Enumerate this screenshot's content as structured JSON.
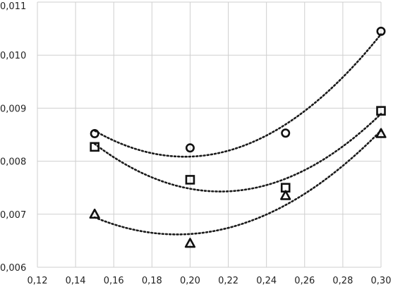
{
  "chart_data": {
    "type": "scatter",
    "title": "",
    "xlabel": "",
    "ylabel": "",
    "xlim": [
      0.12,
      0.3
    ],
    "ylim": [
      0.006,
      0.011
    ],
    "x_ticks": [
      "0,12",
      "0,14",
      "0,16",
      "0,18",
      "0,20",
      "0,22",
      "0,24",
      "0,26",
      "0,28",
      "0,30"
    ],
    "y_ticks": [
      "0,006",
      "0,007",
      "0,008",
      "0,009",
      "0,010",
      "0,011"
    ],
    "grid": true,
    "legend": "none",
    "series": [
      {
        "marker": "circle",
        "x": [
          0.15,
          0.2,
          0.25,
          0.3
        ],
        "y": [
          0.00852,
          0.00825,
          0.00853,
          0.01045
        ],
        "trend": "quadratic, dotted"
      },
      {
        "marker": "square",
        "x": [
          0.15,
          0.2,
          0.25,
          0.3
        ],
        "y": [
          0.00827,
          0.00765,
          0.0075,
          0.00895
        ],
        "trend": "quadratic, dotted"
      },
      {
        "marker": "triangle",
        "x": [
          0.15,
          0.2,
          0.25,
          0.3
        ],
        "y": [
          0.007,
          0.00645,
          0.00735,
          0.00852
        ],
        "trend": "quadratic, dotted"
      }
    ]
  }
}
